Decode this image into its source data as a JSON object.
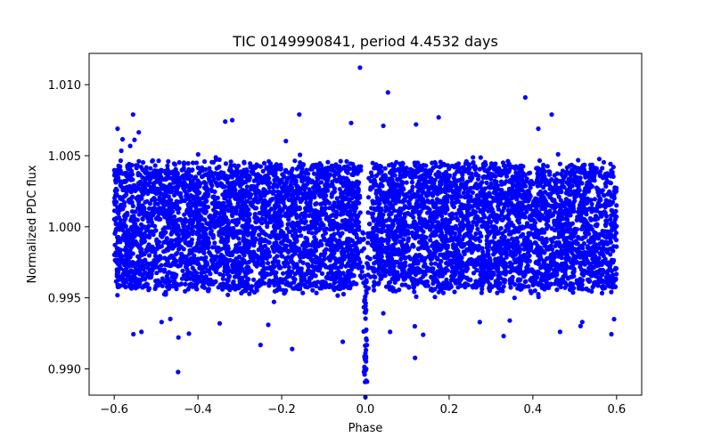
{
  "chart_data": {
    "type": "scatter",
    "title": "TIC 0149990841, period 4.4532 days",
    "xlabel": "Phase",
    "ylabel": "Normalized PDC flux",
    "xlim": [
      -0.66,
      0.66
    ],
    "ylim": [
      0.98815,
      1.0122
    ],
    "x_ticks": [
      -0.6,
      -0.4,
      -0.2,
      0.0,
      0.2,
      0.4,
      0.6
    ],
    "x_tick_labels": [
      "−0.6",
      "−0.4",
      "−0.2",
      "0.0",
      "0.2",
      "0.4",
      "0.6"
    ],
    "y_ticks": [
      0.99,
      0.995,
      1.0,
      1.005,
      1.01
    ],
    "y_tick_labels": [
      "0.990",
      "0.995",
      "1.000",
      "1.005",
      "1.010"
    ],
    "grid": false,
    "series": [
      {
        "name": "PDC flux",
        "color": "#0000ff",
        "phase_range": [
          -0.6,
          0.6
        ],
        "baseline_flux": 1.0,
        "flux_band": [
          0.9955,
          1.0045
        ],
        "transit_center_phase": 0.0,
        "transit_min_flux": 0.9895,
        "outliers": [
          {
            "x": -0.013,
            "y": 1.0112
          },
          {
            "x": 0.382,
            "y": 1.0091
          },
          {
            "x": -0.555,
            "y": 1.0079
          },
          {
            "x": -0.158,
            "y": 1.0079
          },
          {
            "x": 0.445,
            "y": 1.0079
          },
          {
            "x": -0.592,
            "y": 1.0069
          },
          {
            "x": -0.335,
            "y": 1.0074
          },
          {
            "x": -0.318,
            "y": 1.0075
          },
          {
            "x": -0.034,
            "y": 1.0073
          },
          {
            "x": 0.121,
            "y": 1.0072
          },
          {
            "x": 0.175,
            "y": 1.0077
          },
          {
            "x": 0.413,
            "y": 1.0069
          },
          {
            "x": -0.535,
            "y": 0.9926
          },
          {
            "x": -0.487,
            "y": 0.9933
          },
          {
            "x": -0.348,
            "y": 0.9932
          },
          {
            "x": -0.232,
            "y": 0.9931
          },
          {
            "x": -0.175,
            "y": 0.9914
          },
          {
            "x": 0.059,
            "y": 0.9926
          },
          {
            "x": 0.118,
            "y": 0.993
          },
          {
            "x": 0.138,
            "y": 0.9924
          },
          {
            "x": 0.345,
            "y": 0.9934
          },
          {
            "x": 0.465,
            "y": 0.9926
          },
          {
            "x": 0.518,
            "y": 0.9933
          },
          {
            "x": 0.594,
            "y": 0.9935
          }
        ],
        "transit_points": [
          {
            "x": 0.0,
            "y": 0.988
          },
          {
            "x": 0.004,
            "y": 0.9891
          },
          {
            "x": -0.002,
            "y": 0.9896
          },
          {
            "x": 0.002,
            "y": 0.99
          }
        ]
      }
    ]
  }
}
